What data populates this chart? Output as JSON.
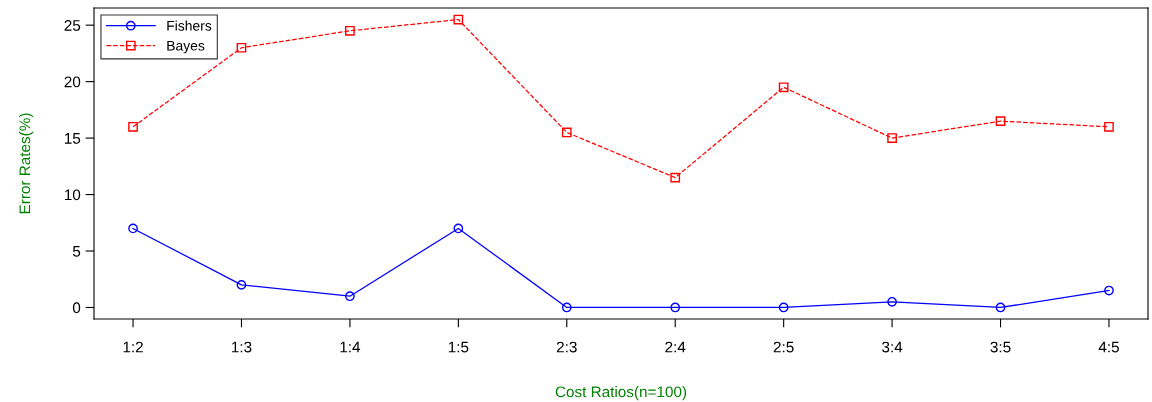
{
  "chart_data": {
    "type": "line",
    "xlabel": "Cost Ratios(n=100)",
    "ylabel": "Error Rates(%)",
    "categories": [
      "1:2",
      "1:3",
      "1:4",
      "1:5",
      "2:3",
      "2:4",
      "2:5",
      "3:4",
      "3:5",
      "4:5"
    ],
    "series": [
      {
        "name": "Fishers",
        "color": "#0000ff",
        "values": [
          7,
          2,
          1,
          7,
          0,
          0,
          0,
          0.5,
          0,
          1.5
        ],
        "marker": "circle",
        "line_style": "solid"
      },
      {
        "name": "Bayes",
        "color": "#ff0000",
        "values": [
          16,
          23,
          24.5,
          25.5,
          15.5,
          11.5,
          19.5,
          15,
          16.5,
          16
        ],
        "marker": "square",
        "line_style": "dashed"
      }
    ],
    "ylim": [
      -1.02,
      26.52
    ],
    "yticks": [
      0,
      5,
      10,
      15,
      20,
      25
    ],
    "grid": false,
    "legend": "top left"
  }
}
